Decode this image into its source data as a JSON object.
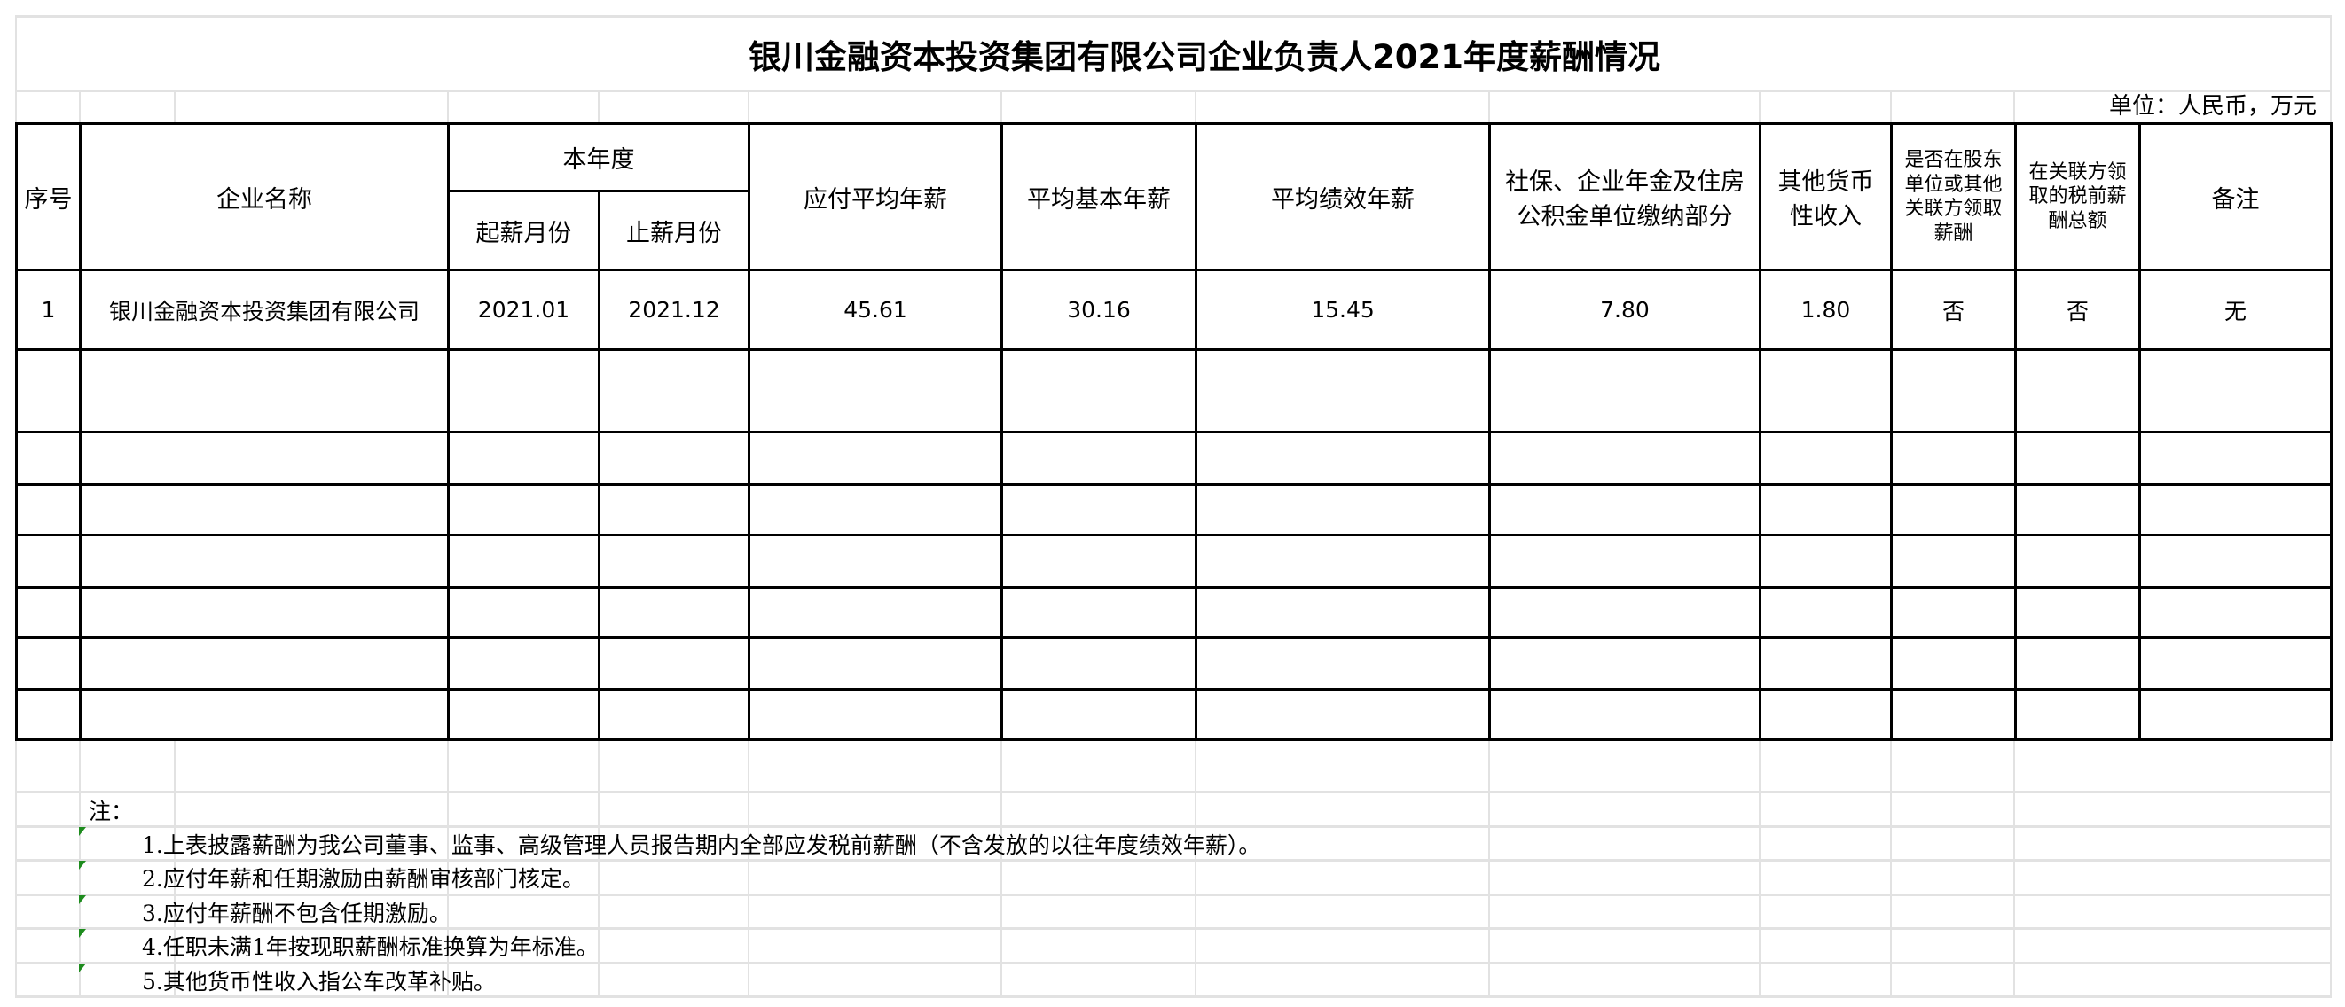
{
  "title": "银川金融资本投资集团有限公司企业负责人2021年度薪酬情况",
  "unit": "单位：人民币，万元",
  "headers": {
    "seq": "序号",
    "company": "企业名称",
    "this_year": "本年度",
    "start_month": "起薪月份",
    "end_month": "止薪月份",
    "avg_payable": "应付平均年薪",
    "avg_base": "平均基本年薪",
    "avg_perf": "平均绩效年薪",
    "social": "社保、企业年金及住房公积金单位缴纳部分",
    "other_income": "其他货币性收入",
    "shareholder_pay": "是否在股东单位或其他关联方领取薪酬",
    "related_pretax": "在关联方领取的税前薪酬总额",
    "remark": "备注"
  },
  "rows": [
    {
      "seq": "1",
      "company": "银川金融资本投资集团有限公司",
      "start_month": "2021.01",
      "end_month": "2021.12",
      "avg_payable": "45.61",
      "avg_base": "30.16",
      "avg_perf": "15.45",
      "social": "7.80",
      "other_income": "1.80",
      "shareholder_pay": "否",
      "related_pretax": "否",
      "remark": "无"
    }
  ],
  "notes": {
    "label": "注：",
    "items": [
      "1.上表披露薪酬为我公司董事、监事、高级管理人员报告期内全部应发税前薪酬（不含发放的以往年度绩效年薪）。",
      "2.应付年薪和任期激励由薪酬审核部门核定。",
      "3.应付年薪酬不包含任期激励。",
      "4.任职未满1年按现职薪酬标准换算为年标准。",
      "5.其他货币性收入指公车改革补贴。"
    ]
  }
}
